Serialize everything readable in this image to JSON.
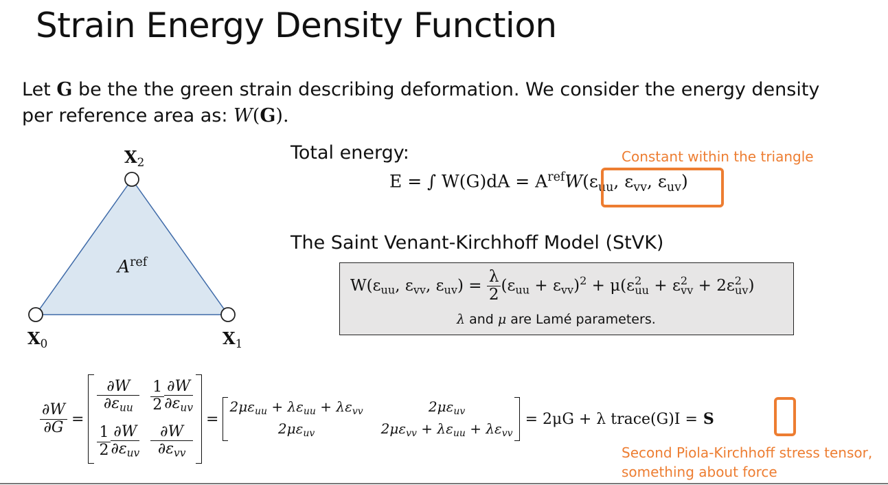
{
  "title": "Strain Energy Density Function",
  "intro": {
    "line1_a": "Let ",
    "line1_G": "G",
    "line1_b": " be the the green strain describing deformation. We consider the energy density",
    "line2_a": "per reference area as: ",
    "line2_W": "W",
    "line2_paren_open": "(",
    "line2_G": "G",
    "line2_paren_close": ").",
    "space": " "
  },
  "triangle": {
    "fill": "#DAE6F1",
    "stroke": "#3E6AA8",
    "vertex_labels": [
      "X",
      "X",
      "X"
    ],
    "vertex_subscripts": [
      "2",
      "0",
      "1"
    ],
    "area_label": "A",
    "area_sup": "ref"
  },
  "total_energy": {
    "label": "Total energy:",
    "eq_left": "E = ∫ W(G)dA = A",
    "eq_sup": "ref",
    "eq_W": "W",
    "eq_args": "(ε",
    "eq_uu": "uu",
    "eq_c1": ", ε",
    "eq_vv": "vv",
    "eq_c2": ", ε",
    "eq_uv": "uv",
    "eq_close": ")",
    "annotation": "Constant within the triangle"
  },
  "stvk": {
    "heading": "The Saint Venant-Kirchhoff Model (StVK)",
    "eq_lhs": "W(ε",
    "lhs_uu": "uu",
    "lhs_c1": ", ε",
    "lhs_vv": "vv",
    "lhs_c2": ", ε",
    "lhs_uv": "uv",
    "lhs_close": ") =",
    "frac_num": "λ",
    "frac_den": "2",
    "rhs_a": "(ε",
    "rhs_a_uu": "uu",
    "rhs_b": " + ε",
    "rhs_b_vv": "vv",
    "rhs_c": ")",
    "rhs_sq": "2",
    "rhs_d": " + μ(ε",
    "rhs_d_sup": "2",
    "rhs_d_uu": "uu",
    "rhs_e": " + ε",
    "rhs_e_sup": "2",
    "rhs_e_vv": "vv",
    "rhs_f": " + 2ε",
    "rhs_f_sup": "2",
    "rhs_f_uv": "uv",
    "rhs_g": ")",
    "note_lambda": "λ",
    "note_and": " and ",
    "note_mu": "μ",
    "note_rest": " are Lamé parameters."
  },
  "derivative": {
    "lhs_num": "∂W",
    "lhs_den": "∂G",
    "eq1": "=",
    "m11_num": "∂W",
    "m11_den": "∂ε",
    "m11_sub": "uu",
    "half_num": "1",
    "half_den": "2",
    "m12_num": "∂W",
    "m12_den": "∂ε",
    "m12_sub": "uv",
    "m21_num": "∂W",
    "m21_den": "∂ε",
    "m21_sub": "uv",
    "m22_num": "∂W",
    "m22_den": "∂ε",
    "m22_sub": "vv",
    "eq2": "=",
    "r11": "2με",
    "r11_s1": "uu",
    "r11_b": " + λε",
    "r11_s2": "uu",
    "r11_c": " + λε",
    "r11_s3": "vv",
    "r12": "2με",
    "r12_s": "uv",
    "r21": "2με",
    "r21_s": "uv",
    "r22": "2με",
    "r22_s1": "vv",
    "r22_b": " + λε",
    "r22_s2": "uu",
    "r22_c": " + λε",
    "r22_s3": "vv",
    "tail": "= 2μG + λ trace(G)I =",
    "S": "S",
    "annotation_line1": "Second Piola-Kirchhoff stress tensor,",
    "annotation_line2": "something about force"
  },
  "colors": {
    "accent": "#ED7D31",
    "box_fill": "#E7E6E6",
    "triangle_fill": "#DAE6F1",
    "triangle_stroke": "#3E6AA8"
  }
}
